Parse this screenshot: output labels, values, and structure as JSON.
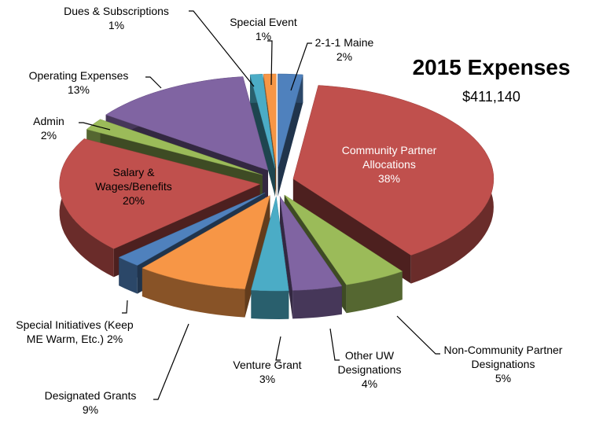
{
  "chart_data": {
    "type": "pie",
    "title": "2015 Expenses",
    "subtitle": "$411,140",
    "categories": [
      "2-1-1 Maine",
      "Community Partner Allocations",
      "Non-Community Partner Designations",
      "Other UW Designations",
      "Venture Grant",
      "Designated Grants",
      "Special Initiatives (Keep ME Warm, Etc.)",
      "Salary & Wages/Benefits",
      "Admin",
      "Operating Expenses",
      "Dues & Subscriptions",
      "Special Event"
    ],
    "values": [
      2,
      38,
      5,
      4,
      3,
      9,
      2,
      20,
      2,
      13,
      1,
      1
    ],
    "value_labels": [
      "2%",
      "38%",
      "5%",
      "4%",
      "3%",
      "9%",
      "2%",
      "20%",
      "2%",
      "13%",
      "1%",
      "1%"
    ],
    "colors": [
      "#4f81bd",
      "#c0504d",
      "#9bbb59",
      "#8064a2",
      "#4bacc6",
      "#f79646",
      "#4f81bd",
      "#c0504d",
      "#9bbb59",
      "#8064a2",
      "#4bacc6",
      "#f79646"
    ]
  }
}
